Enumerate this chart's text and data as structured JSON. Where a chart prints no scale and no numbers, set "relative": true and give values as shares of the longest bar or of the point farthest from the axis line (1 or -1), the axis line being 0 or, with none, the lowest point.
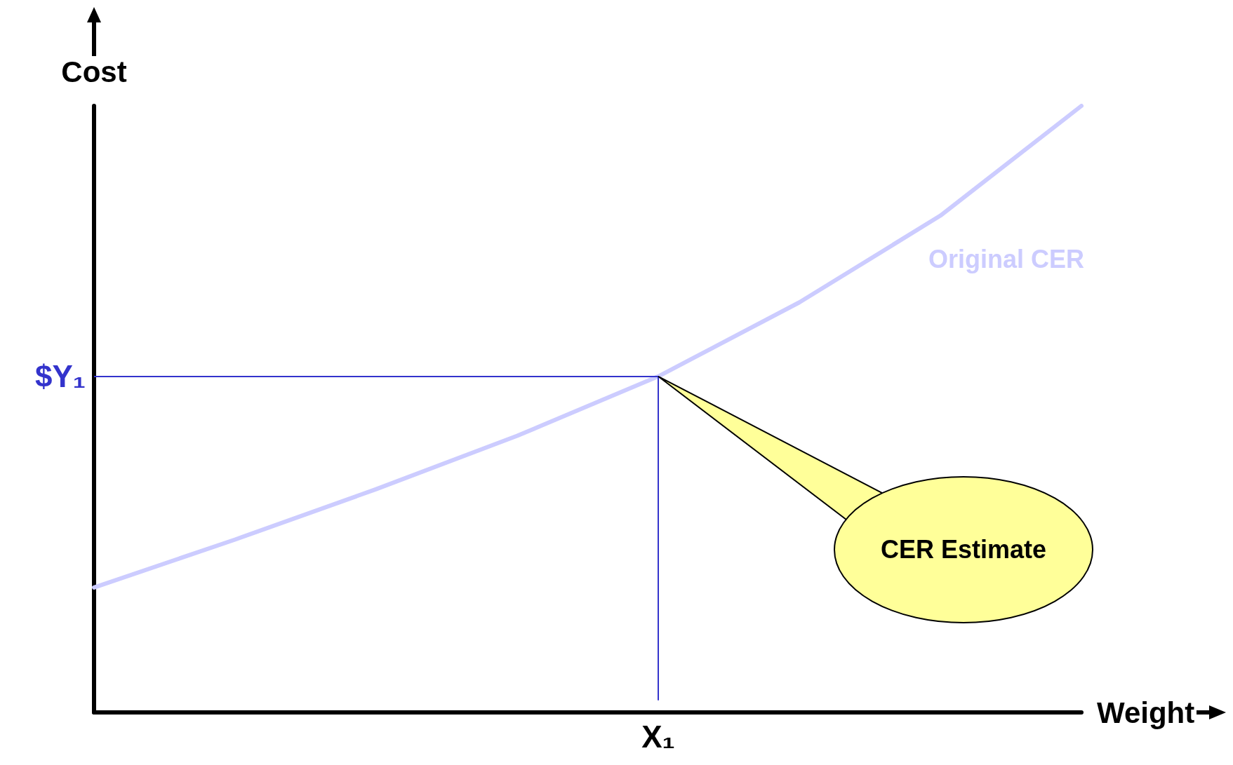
{
  "chart_data": {
    "type": "line",
    "relative": true,
    "xlabel": "Weight",
    "ylabel": "Cost",
    "categories": [
      null,
      null,
      null,
      null,
      null,
      null,
      null,
      null
    ],
    "series": [
      {
        "name": "Original CER",
        "color": "#ccccff",
        "values": [
          0.206,
          0.285,
          0.368,
          0.456,
          0.554,
          0.676,
          0.819,
          1.0
        ]
      }
    ],
    "ref_lines": [
      {
        "axis": "y",
        "value": 0.554,
        "label": "$Y₁",
        "color": "#3333cc"
      }
    ],
    "annotations": [
      "CER Estimate",
      "X₁"
    ],
    "grid": false,
    "legend": false,
    "marker": "none",
    "line_style": "solid"
  }
}
